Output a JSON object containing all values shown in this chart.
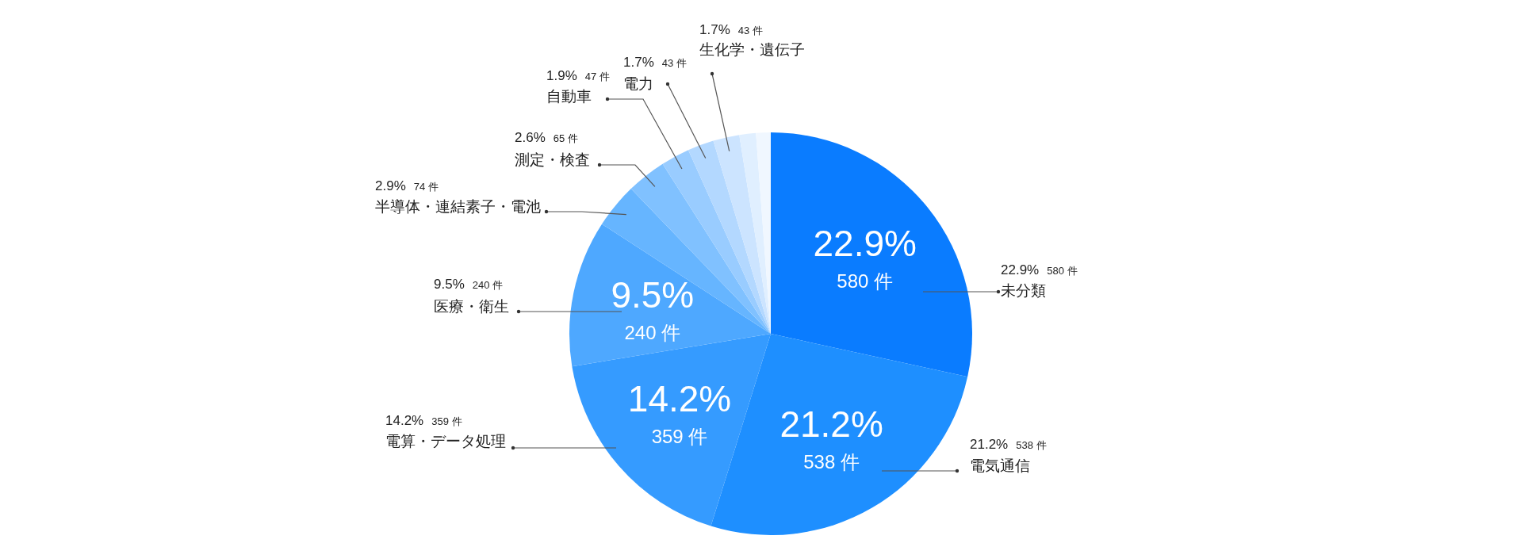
{
  "chart_data": {
    "type": "pie",
    "categories": [
      "未分類",
      "電気通信",
      "電算・データ処理",
      "医療・衛生",
      "半導体・連結素子・電池",
      "測定・検査",
      "自動車",
      "電力",
      "生化学・遺伝子",
      null,
      null
    ],
    "values": [
      580,
      538,
      359,
      240,
      74,
      65,
      47,
      43,
      43,
      27,
      24
    ],
    "colors": [
      "#0a7cff",
      "#1e8fff",
      "#359bff",
      "#4ea8ff",
      "#66b5ff",
      "#80c1ff",
      "#99ccff",
      "#b3d8ff",
      "#cce4ff",
      "#e0efff",
      "#f0f7ff"
    ],
    "value_labels": [
      "22.9% 580 件",
      "21.2% 538 件",
      "14.2% 359 件",
      "9.5% 240 件",
      "2.9% 74 件",
      "2.6% 65 件",
      "1.9% 47 件",
      "1.7% 43 件",
      "1.7% 43 件",
      null,
      null
    ]
  }
}
